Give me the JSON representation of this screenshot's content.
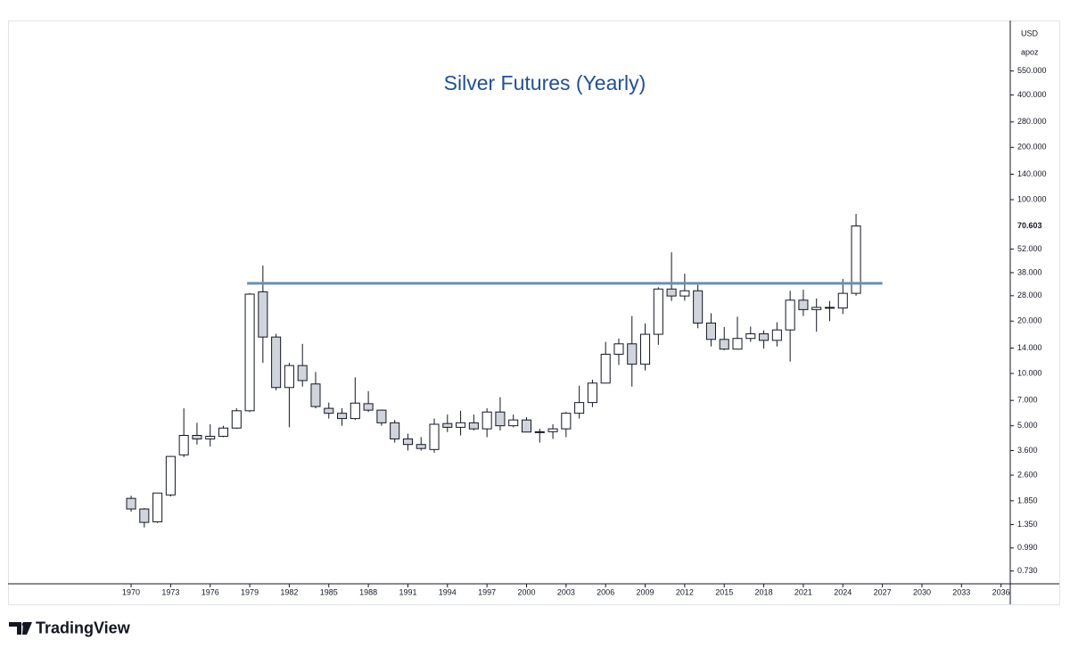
{
  "chart_data": {
    "type": "candlestick",
    "title": "Silver Futures (Yearly)",
    "currency": "USD",
    "unit": "apoz",
    "brand": "TradingView",
    "log_scale": true,
    "up_color": "#ffffff",
    "down_color": "#d1d4dc",
    "border_color": "#131722",
    "title_color": "#1f4e9c",
    "x": [
      1970,
      1971,
      1972,
      1973,
      1974,
      1975,
      1976,
      1977,
      1978,
      1979,
      1980,
      1981,
      1982,
      1983,
      1984,
      1985,
      1986,
      1987,
      1988,
      1989,
      1990,
      1991,
      1992,
      1993,
      1994,
      1995,
      1996,
      1997,
      1998,
      1999,
      2000,
      2001,
      2002,
      2003,
      2004,
      2005,
      2006,
      2007,
      2008,
      2009,
      2010,
      2011,
      2012,
      2013,
      2014,
      2015,
      2016,
      2017,
      2018,
      2019,
      2020,
      2021,
      2022,
      2023,
      2024,
      2025
    ],
    "open": [
      1.91,
      1.66,
      1.4,
      2.0,
      3.4,
      4.4,
      4.2,
      4.35,
      4.85,
      6.1,
      29.5,
      16.2,
      8.3,
      11.1,
      8.7,
      6.3,
      5.9,
      5.5,
      6.7,
      6.15,
      5.2,
      4.2,
      3.9,
      3.65,
      5.15,
      4.9,
      5.2,
      4.8,
      6.0,
      5.0,
      5.4,
      4.6,
      4.62,
      4.8,
      5.9,
      6.8,
      8.8,
      12.9,
      14.8,
      11.3,
      16.8,
      30.6,
      27.9,
      29.9,
      19.5,
      15.7,
      13.8,
      15.9,
      16.9,
      15.5,
      17.8,
      26.4,
      23.3,
      24.0,
      23.8,
      28.9
    ],
    "high": [
      1.98,
      1.68,
      2.06,
      3.35,
      6.3,
      5.2,
      5.1,
      5.0,
      6.3,
      29,
      41.8,
      16.9,
      11.5,
      14.8,
      10.2,
      6.8,
      6.3,
      9.5,
      7.9,
      6.2,
      5.4,
      4.5,
      4.3,
      5.5,
      5.8,
      6.1,
      5.8,
      6.3,
      7.3,
      5.8,
      5.6,
      4.8,
      5.1,
      6.0,
      8.5,
      9.2,
      15.2,
      15.9,
      21.4,
      19.4,
      31.3,
      49.8,
      37.5,
      32.4,
      22.2,
      18.5,
      21.2,
      18.6,
      17.7,
      19.7,
      29.9,
      30.3,
      27.0,
      26.1,
      35.0,
      82.8
    ],
    "low": [
      1.6,
      1.3,
      1.38,
      1.96,
      3.3,
      3.9,
      3.8,
      4.3,
      4.8,
      6.0,
      11.5,
      8.0,
      4.9,
      8.4,
      6.3,
      5.5,
      5.0,
      5.4,
      6.0,
      5.0,
      4.0,
      3.6,
      3.6,
      3.5,
      4.6,
      4.4,
      4.7,
      4.3,
      4.7,
      4.9,
      4.6,
      4.0,
      4.2,
      4.3,
      5.5,
      6.4,
      8.8,
      11.2,
      8.4,
      10.4,
      14.6,
      26.1,
      26.2,
      18.2,
      14.3,
      13.6,
      13.7,
      15.2,
      13.9,
      14.3,
      11.7,
      21.4,
      17.4,
      20.0,
      22.0,
      28.0
    ],
    "close": [
      1.66,
      1.39,
      2.05,
      3.33,
      4.4,
      4.2,
      4.35,
      4.85,
      6.1,
      28.6,
      16.2,
      8.3,
      11.1,
      9.1,
      6.45,
      5.9,
      5.5,
      6.75,
      6.15,
      5.2,
      4.2,
      3.9,
      3.7,
      5.1,
      4.9,
      5.2,
      4.8,
      6.0,
      5.0,
      5.4,
      4.6,
      4.62,
      4.8,
      5.9,
      6.8,
      8.8,
      12.9,
      14.8,
      11.3,
      16.8,
      30.6,
      27.9,
      29.9,
      19.5,
      15.7,
      13.8,
      15.9,
      16.9,
      15.5,
      17.8,
      26.4,
      23.3,
      24.0,
      23.8,
      28.9,
      70.603
    ],
    "hline": {
      "value": 33,
      "x": [
        1978.8,
        2027
      ],
      "color": "#6a8fb8"
    },
    "xlim": [
      1960.73,
      2036.7
    ],
    "ylim": [
      0.616,
      1061
    ],
    "xticks": [
      1970,
      1973,
      1976,
      1979,
      1982,
      1985,
      1988,
      1991,
      1994,
      1997,
      2000,
      2003,
      2006,
      2009,
      2012,
      2015,
      2018,
      2021,
      2024,
      2027,
      2030,
      2033,
      2036
    ],
    "yticks": [
      {
        "value": 550,
        "label": "550.000"
      },
      {
        "value": 400,
        "label": "400.000"
      },
      {
        "value": 280,
        "label": "280.000"
      },
      {
        "value": 200,
        "label": "200.000"
      },
      {
        "value": 140,
        "label": "140.000"
      },
      {
        "value": 100,
        "label": "100.000"
      },
      {
        "value": 52,
        "label": "52.000"
      },
      {
        "value": 38,
        "label": "38.000"
      },
      {
        "value": 28,
        "label": "28.000"
      },
      {
        "value": 20,
        "label": "20.000"
      },
      {
        "value": 14,
        "label": "14.000"
      },
      {
        "value": 10,
        "label": "10.000"
      },
      {
        "value": 7,
        "label": "7.000"
      },
      {
        "value": 5,
        "label": "5.000"
      },
      {
        "value": 3.6,
        "label": "3.600"
      },
      {
        "value": 2.6,
        "label": "2.600"
      },
      {
        "value": 1.85,
        "label": "1.850"
      },
      {
        "value": 1.35,
        "label": "1.350"
      },
      {
        "value": 0.99,
        "label": "0.990"
      },
      {
        "value": 0.73,
        "label": "0.730"
      }
    ]
  }
}
